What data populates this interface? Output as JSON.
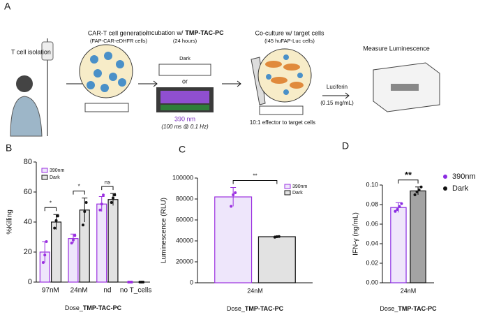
{
  "panel_a": {
    "label": "A",
    "isolation": "T cell isolation",
    "generation": "CAR-T cell generation",
    "generation_sub": "(FAP-CAR-eDHFR cells)",
    "incubation": "Incubation w/",
    "incubation_bold": "TMP-TAC-PC",
    "incubation_sub": "(24 hours)",
    "dark": "Dark",
    "or": "or",
    "wavelength": "390 nm",
    "pulse": "(100 ms @ 0.1 Hz)",
    "coculture": "Co-culture w/ target cells",
    "coculture_sub": "(I45 huFAP-Luc cells)",
    "ratio": "10:1 effector to target cells",
    "luciferin": "Luciferin",
    "luciferin_conc": "(0.15 mg/mL)",
    "measure": "Measure Luminescence"
  },
  "chart_data": [
    {
      "type": "bar",
      "panel": "B",
      "ylabel": "%Killing",
      "xlabel": "Dose_",
      "xlabel_bold": "TMP-TAC-PC",
      "categories": [
        "97nM",
        "24nM",
        "nd",
        "no T_cells"
      ],
      "series": [
        {
          "name": "390nm",
          "color": "#9b30e0",
          "fill": "#eee6fb",
          "values": [
            20,
            29,
            52,
            0
          ],
          "errors": [
            7,
            3,
            5,
            0
          ],
          "points": [
            [
              13,
              18,
              27
            ],
            [
              26,
              28,
              31
            ],
            [
              48,
              52,
              58
            ],
            [
              0,
              0,
              0
            ]
          ]
        },
        {
          "name": "Dark",
          "color": "#111111",
          "fill": "#e2e2e2",
          "values": [
            40,
            48,
            55,
            0
          ],
          "errors": [
            5,
            8,
            4,
            0
          ],
          "points": [
            [
              36,
              41,
              44
            ],
            [
              38,
              47,
              53
            ],
            [
              53,
              56,
              58
            ],
            [
              0,
              0,
              0
            ]
          ]
        }
      ],
      "significance": [
        "*",
        "*",
        "ns",
        null
      ],
      "ylim": [
        0,
        80
      ],
      "yticks": [
        0,
        20,
        40,
        60,
        80
      ],
      "legend": "upper left"
    },
    {
      "type": "bar",
      "panel": "C",
      "ylabel": "Luminescence (RLU)",
      "xlabel": "Dose_",
      "xlabel_bold": "TMP-TAC-PC",
      "categories": [
        "24nM"
      ],
      "series": [
        {
          "name": "390nm",
          "color": "#9b30e0",
          "fill": "#eee6fb",
          "values": [
            82000
          ],
          "errors": [
            9000
          ],
          "points": [
            [
              73000,
              84000,
              86000
            ]
          ]
        },
        {
          "name": "Dark",
          "color": "#111111",
          "fill": "#e2e2e2",
          "values": [
            44000
          ],
          "errors": [
            700
          ],
          "points": [
            [
              43500,
              44000,
              44200
            ]
          ]
        }
      ],
      "significance": [
        "**"
      ],
      "ylim": [
        0,
        100000
      ],
      "yticks": [
        0,
        20000,
        40000,
        60000,
        80000,
        100000
      ],
      "legend": "upper right"
    },
    {
      "type": "bar",
      "panel": "D",
      "ylabel": "IFN-γ (ng/mL)",
      "xlabel": "Dose_",
      "xlabel_bold": "TMP-TAC-PC",
      "categories": [
        "24nM"
      ],
      "series": [
        {
          "name": "390nm",
          "color": "#8a2be2",
          "fill": "#efe6fb",
          "values": [
            0.077
          ],
          "errors": [
            0.005
          ],
          "points": [
            [
              0.073,
              0.075,
              0.078,
              0.081
            ]
          ]
        },
        {
          "name": "Dark",
          "color": "#111111",
          "fill": "#a3a3a3",
          "values": [
            0.094
          ],
          "errors": [
            0.004
          ],
          "points": [
            [
              0.09,
              0.093,
              0.095,
              0.098
            ]
          ]
        }
      ],
      "significance": [
        "**"
      ],
      "ylim": [
        0,
        0.1
      ],
      "yticks": [
        {
          "value": 0,
          "label": "0.00"
        },
        {
          "value": 0.02,
          "label": "0.02"
        },
        {
          "value": 0.04,
          "label": "0.04"
        },
        {
          "value": 0.06,
          "label": "0.06"
        },
        {
          "value": 0.08,
          "label": "0.08"
        },
        {
          "value": 0.1,
          "label": "0.10"
        }
      ],
      "legend": "outside right"
    }
  ]
}
